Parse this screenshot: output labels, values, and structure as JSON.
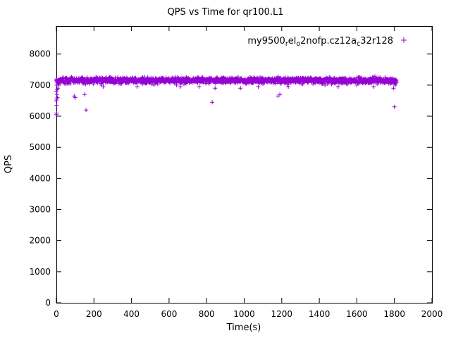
{
  "chart_data": {
    "type": "scatter",
    "title": "QPS vs Time for qr100.L1",
    "xlabel": "Time(s)",
    "ylabel": "QPS",
    "xlim": [
      0,
      2000
    ],
    "ylim": [
      0,
      8000
    ],
    "xticks": [
      0,
      200,
      400,
      600,
      800,
      1000,
      1200,
      1400,
      1600,
      1800,
      2000
    ],
    "yticks": [
      0,
      1000,
      2000,
      3000,
      4000,
      5000,
      6000,
      7000,
      8000
    ],
    "grid": false,
    "legend_position": "top-right-inside",
    "background_color": "#ffffff",
    "axis_color": "#000000",
    "series": [
      {
        "name": "my9500_rel_o2nofp.cz12a_c32r128",
        "label_segments": [
          {
            "t": "my9500"
          },
          {
            "t": "r",
            "sub": true
          },
          {
            "t": "el"
          },
          {
            "t": "o",
            "sub": true
          },
          {
            "t": "2nofp.cz12a"
          },
          {
            "t": "c",
            "sub": true
          },
          {
            "t": "32r128"
          }
        ],
        "color": "#9400D3",
        "marker": "plus",
        "band": {
          "x_start": 0,
          "x_end": 1812,
          "y_mean": 7150,
          "y_jitter": 140,
          "count": 1700,
          "seed": 42
        },
        "outliers": [
          [
            0,
            6050
          ],
          [
            0,
            6500
          ],
          [
            0,
            6800
          ],
          [
            1,
            6100
          ],
          [
            1,
            6350
          ],
          [
            1,
            7000
          ],
          [
            2,
            6550
          ],
          [
            2,
            7100
          ],
          [
            3,
            6700
          ],
          [
            4,
            6850
          ],
          [
            6,
            6600
          ],
          [
            8,
            6900
          ],
          [
            10,
            7000
          ],
          [
            12,
            7050
          ],
          [
            95,
            6650
          ],
          [
            100,
            6600
          ],
          [
            150,
            6700
          ],
          [
            158,
            6200
          ],
          [
            240,
            7000
          ],
          [
            250,
            6950
          ],
          [
            430,
            6950
          ],
          [
            520,
            7000
          ],
          [
            640,
            7000
          ],
          [
            660,
            6950
          ],
          [
            760,
            6950
          ],
          [
            830,
            6450
          ],
          [
            845,
            6900
          ],
          [
            980,
            6900
          ],
          [
            1075,
            6950
          ],
          [
            1180,
            6650
          ],
          [
            1190,
            6700
          ],
          [
            1235,
            6950
          ],
          [
            1430,
            7000
          ],
          [
            1500,
            6950
          ],
          [
            1600,
            7000
          ],
          [
            1690,
            6950
          ],
          [
            1795,
            6900
          ],
          [
            1800,
            6300
          ],
          [
            1805,
            7000
          ]
        ]
      }
    ]
  }
}
